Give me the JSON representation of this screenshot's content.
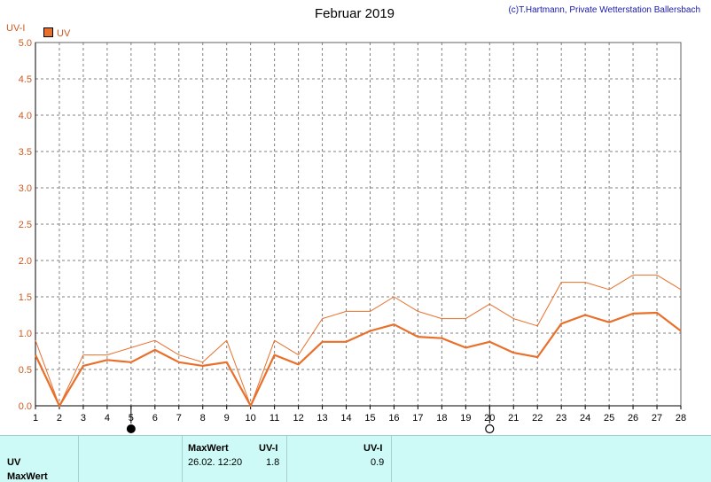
{
  "header": {
    "title": "Februar 2019",
    "copyright": "(c)T.Hartmann, Private Wetterstation Ballersbach"
  },
  "chart_data": {
    "type": "line",
    "title": "Februar 2019",
    "ylabel": "UV-I",
    "xlabel": "",
    "x": [
      1,
      2,
      3,
      4,
      5,
      6,
      7,
      8,
      9,
      10,
      11,
      12,
      13,
      14,
      15,
      16,
      17,
      18,
      19,
      20,
      21,
      22,
      23,
      24,
      25,
      26,
      27,
      28
    ],
    "xlim": [
      1,
      28
    ],
    "ylim": [
      0,
      5
    ],
    "y_ticks": [
      "0.0",
      "0.5",
      "1.0",
      "1.5",
      "2.0",
      "2.5",
      "3.0",
      "3.5",
      "4.0",
      "4.5",
      "5.0"
    ],
    "grid": true,
    "legend": {
      "position": "top-left",
      "label": "UV"
    },
    "colors": {
      "line": "#e8702a",
      "grid": "#808080",
      "axis_text": "#cc5a1e"
    },
    "series": [
      {
        "name": "UV",
        "role": "mean",
        "values": [
          0.7,
          0,
          0.55,
          0.63,
          0.6,
          0.77,
          0.6,
          0.55,
          0.6,
          0,
          0.7,
          0.57,
          0.88,
          0.88,
          1.03,
          1.12,
          0.95,
          0.93,
          0.8,
          0.88,
          0.73,
          0.67,
          1.13,
          1.25,
          1.15,
          1.27,
          1.28,
          1.03
        ]
      },
      {
        "role": "max",
        "values": [
          0.9,
          0,
          0.7,
          0.7,
          0.8,
          0.9,
          0.7,
          0.6,
          0.9,
          0,
          0.9,
          0.7,
          1.2,
          1.3,
          1.3,
          1.5,
          1.3,
          1.2,
          1.2,
          1.4,
          1.2,
          1.1,
          1.7,
          1.7,
          1.6,
          1.8,
          1.8,
          1.6
        ]
      }
    ],
    "markers": [
      {
        "day": 5,
        "symbol": "new-moon"
      },
      {
        "day": 20,
        "symbol": "full-moon"
      }
    ]
  },
  "table": {
    "row_labels": [
      "UV",
      "MaxWert"
    ],
    "max_header": "MaxWert",
    "uv_header_1": "UV-I",
    "max_date": "26.02.  12:20",
    "max_value": "1.8",
    "uv_header_2": "UV-I",
    "avg_value": "0.9"
  }
}
